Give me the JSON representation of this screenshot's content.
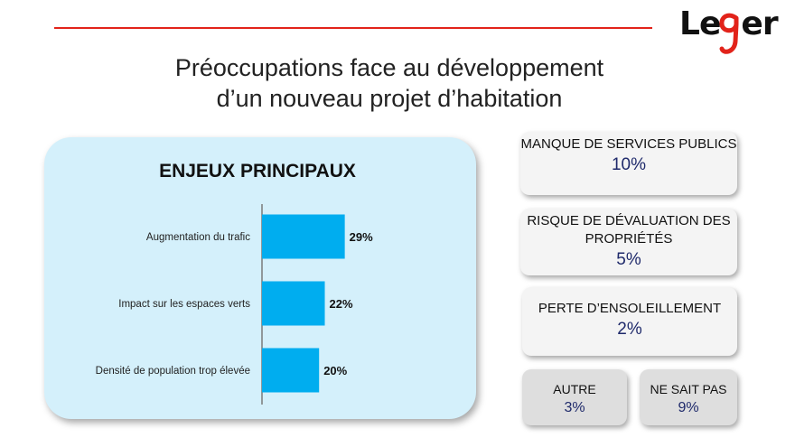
{
  "brand": {
    "logo_text": "Leger",
    "accent": "#e2231a"
  },
  "title": {
    "line1": "Préoccupations face au développement",
    "line2": "d’un nouveau projet d’habitation"
  },
  "panel": {
    "title": "ENJEUX PRINCIPAUX"
  },
  "chart_data": {
    "type": "bar",
    "orientation": "horizontal",
    "title": "ENJEUX PRINCIPAUX",
    "categories": [
      "Augmentation du trafic",
      "Impact sur les espaces verts",
      "Densité de population trop élevée"
    ],
    "values": [
      29,
      22,
      20
    ],
    "value_labels": [
      "29%",
      "22%",
      "20%"
    ],
    "unit": "%",
    "xlim": [
      0,
      100
    ],
    "color": "#00adef",
    "grid": false,
    "legend": "none"
  },
  "cards": [
    {
      "label": "MANQUE DE SERVICES PUBLICS",
      "value": "10%"
    },
    {
      "label": "RISQUE DE DÉVALUATION DES PROPRIÉTÉS",
      "value": "5%"
    },
    {
      "label": "PERTE D’ENSOLEILLEMENT",
      "value": "2%"
    },
    {
      "label": "AUTRE",
      "value": "3%"
    },
    {
      "label": "NE SAIT PAS",
      "value": "9%"
    }
  ]
}
